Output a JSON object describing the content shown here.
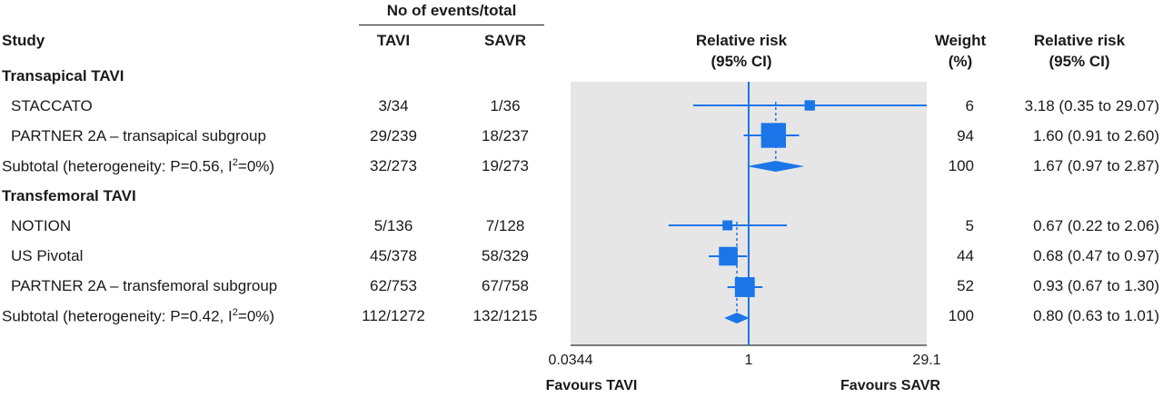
{
  "headers": {
    "events_title": "No of events/total",
    "study": "Study",
    "tavi": "TAVI",
    "savr": "SAVR",
    "rr_line1": "Relative risk",
    "rr_line2": "(95% CI)",
    "weight_line1": "Weight",
    "weight_line2": "(%)",
    "rrtext_line1": "Relative risk",
    "rrtext_line2": "(95% CI)"
  },
  "rows": [
    {
      "kind": "group",
      "label": "Transapical TAVI"
    },
    {
      "kind": "study",
      "label": "STACCATO",
      "tavi": "3/34",
      "savr": "1/36",
      "weight": "6",
      "rr_text": "3.18 (0.35 to 29.07)"
    },
    {
      "kind": "study",
      "label": "PARTNER 2A – transapical subgroup",
      "tavi": "29/239",
      "savr": "18/237",
      "weight": "94",
      "rr_text": "1.60 (0.91 to 2.60)"
    },
    {
      "kind": "subtotal",
      "label_pre": "Subtotal (heterogeneity: P=0.56, I",
      "label_sup": "2",
      "label_post": "=0%)",
      "tavi": "32/273",
      "savr": "19/273",
      "weight": "100",
      "rr_text": "1.67 (0.97 to 2.87)"
    },
    {
      "kind": "group",
      "label": "Transfemoral TAVI"
    },
    {
      "kind": "study",
      "label": "NOTION",
      "tavi": "5/136",
      "savr": "7/128",
      "weight": "5",
      "rr_text": "0.67 (0.22 to 2.06)"
    },
    {
      "kind": "study",
      "label": "US Pivotal",
      "tavi": "45/378",
      "savr": "58/329",
      "weight": "44",
      "rr_text": "0.68 (0.47 to 0.97)"
    },
    {
      "kind": "study",
      "label": "PARTNER 2A – transfemoral subgroup",
      "tavi": "62/753",
      "savr": "67/758",
      "weight": "52",
      "rr_text": "0.93 (0.67 to 1.30)"
    },
    {
      "kind": "subtotal",
      "label_pre": "Subtotal (heterogeneity: P=0.42, I",
      "label_sup": "2",
      "label_post": "=0%)",
      "tavi": "112/1272",
      "savr": "132/1215",
      "weight": "100",
      "rr_text": "0.80 (0.63 to 1.01)"
    }
  ],
  "chart_data": {
    "type": "forest",
    "scale": "log",
    "xlim": [
      0.0344,
      29.1
    ],
    "axis_ticks": [
      "0.0344",
      "1",
      "29.1"
    ],
    "reference_line": 1,
    "xlabel_left": "Favours TAVI",
    "xlabel_right": "Favours SAVR",
    "series_color": "#1a75e8",
    "panel_color": "#e6e6e6",
    "points": [
      {
        "study": "STACCATO",
        "rr": 3.18,
        "lo": 0.35,
        "hi": 29.07,
        "weight": 6
      },
      {
        "study": "PARTNER 2A – transapical subgroup",
        "rr": 1.6,
        "lo": 0.91,
        "hi": 2.6,
        "weight": 94
      },
      {
        "study": "Subtotal transapical",
        "rr": 1.67,
        "lo": 0.97,
        "hi": 2.87,
        "weight": 100,
        "diamond": true
      },
      {
        "study": "NOTION",
        "rr": 0.67,
        "lo": 0.22,
        "hi": 2.06,
        "weight": 5
      },
      {
        "study": "US Pivotal",
        "rr": 0.68,
        "lo": 0.47,
        "hi": 0.97,
        "weight": 44
      },
      {
        "study": "PARTNER 2A – transfemoral subgroup",
        "rr": 0.93,
        "lo": 0.67,
        "hi": 1.3,
        "weight": 52
      },
      {
        "study": "Subtotal transfemoral",
        "rr": 0.8,
        "lo": 0.63,
        "hi": 1.01,
        "weight": 100,
        "diamond": true
      }
    ]
  }
}
